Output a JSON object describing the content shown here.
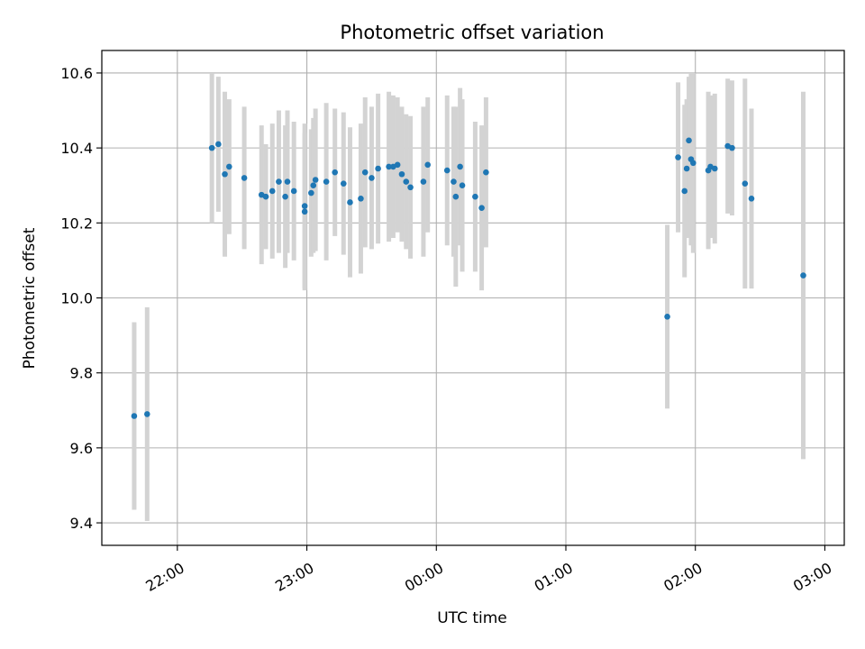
{
  "chart_data": {
    "type": "scatter",
    "title": "Photometric offset variation",
    "xlabel": "UTC time",
    "ylabel": "Photometric offset",
    "x_ticks": [
      "22:00",
      "23:00",
      "00:00",
      "01:00",
      "02:00",
      "03:00"
    ],
    "xlim": [
      "21:25",
      "03:09"
    ],
    "ylim": [
      9.34,
      10.66
    ],
    "y_ticks": [
      9.4,
      9.6,
      9.8,
      10.0,
      10.2,
      10.4,
      10.6
    ],
    "grid": true,
    "colors": {
      "points": "#1f77b4",
      "error_bars": "#d3d3d3",
      "grid": "#b0b0b0"
    },
    "series": [
      {
        "x": [
          "21:40",
          "21:46",
          "22:16",
          "22:19",
          "22:22",
          "22:24",
          "22:31",
          "22:39",
          "22:41",
          "22:44",
          "22:47",
          "22:50",
          "22:51",
          "22:54",
          "22:59",
          "22:59",
          "23:02",
          "23:03",
          "23:04",
          "23:09",
          "23:13",
          "23:17",
          "23:20",
          "23:25",
          "23:27",
          "23:30",
          "23:33",
          "23:38",
          "23:40",
          "23:42",
          "23:44",
          "23:46",
          "23:48",
          "23:54",
          "23:56",
          "00:05",
          "00:08",
          "00:09",
          "00:11",
          "00:12",
          "00:18",
          "00:21",
          "00:23"
        ],
        "y": [
          9.685,
          9.69,
          10.4,
          10.41,
          10.33,
          10.35,
          10.32,
          10.275,
          10.27,
          10.285,
          10.31,
          10.27,
          10.31,
          10.285,
          10.245,
          10.23,
          10.28,
          10.3,
          10.315,
          10.31,
          10.335,
          10.305,
          10.255,
          10.265,
          10.335,
          10.32,
          10.345,
          10.35,
          10.35,
          10.355,
          10.33,
          10.31,
          10.295,
          10.31,
          10.355,
          10.34,
          10.31,
          10.27,
          10.35,
          10.3,
          10.27,
          10.24,
          10.335
        ],
        "yerr": [
          0.25,
          0.285,
          0.2,
          0.18,
          0.22,
          0.18,
          0.19,
          0.185,
          0.14,
          0.18,
          0.19,
          0.19,
          0.19,
          0.185,
          0.22,
          0.21,
          0.17,
          0.18,
          0.19,
          0.21,
          0.17,
          0.19,
          0.2,
          0.2,
          0.2,
          0.19,
          0.2,
          0.2,
          0.19,
          0.18,
          0.18,
          0.18,
          0.19,
          0.2,
          0.18,
          0.2,
          0.2,
          0.24,
          0.21,
          0.23,
          0.2,
          0.22,
          0.2
        ]
      },
      {
        "x": [
          "01:47",
          "01:52",
          "01:55",
          "01:56",
          "01:57",
          "01:58",
          "01:59",
          "02:06",
          "02:07",
          "02:09",
          "02:15",
          "02:17",
          "02:23",
          "02:26",
          "02:50"
        ],
        "y": [
          9.95,
          10.375,
          10.285,
          10.345,
          10.42,
          10.37,
          10.36,
          10.34,
          10.35,
          10.345,
          10.405,
          10.4,
          10.305,
          10.265,
          10.06
        ],
        "yerr": [
          0.245,
          0.2,
          0.23,
          0.185,
          0.17,
          0.23,
          0.24,
          0.21,
          0.19,
          0.2,
          0.18,
          0.18,
          0.28,
          0.24,
          0.49
        ]
      }
    ]
  }
}
